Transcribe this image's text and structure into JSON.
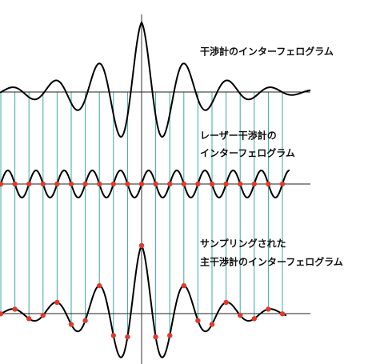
{
  "labels": {
    "interferogram": "干渉計のインターフェログラム",
    "laser": [
      "レーザー干渉計の",
      "インターフェログラム"
    ],
    "sampled": [
      "サンプリングされた",
      "主干渉計のインターフェログラム"
    ]
  }
}
